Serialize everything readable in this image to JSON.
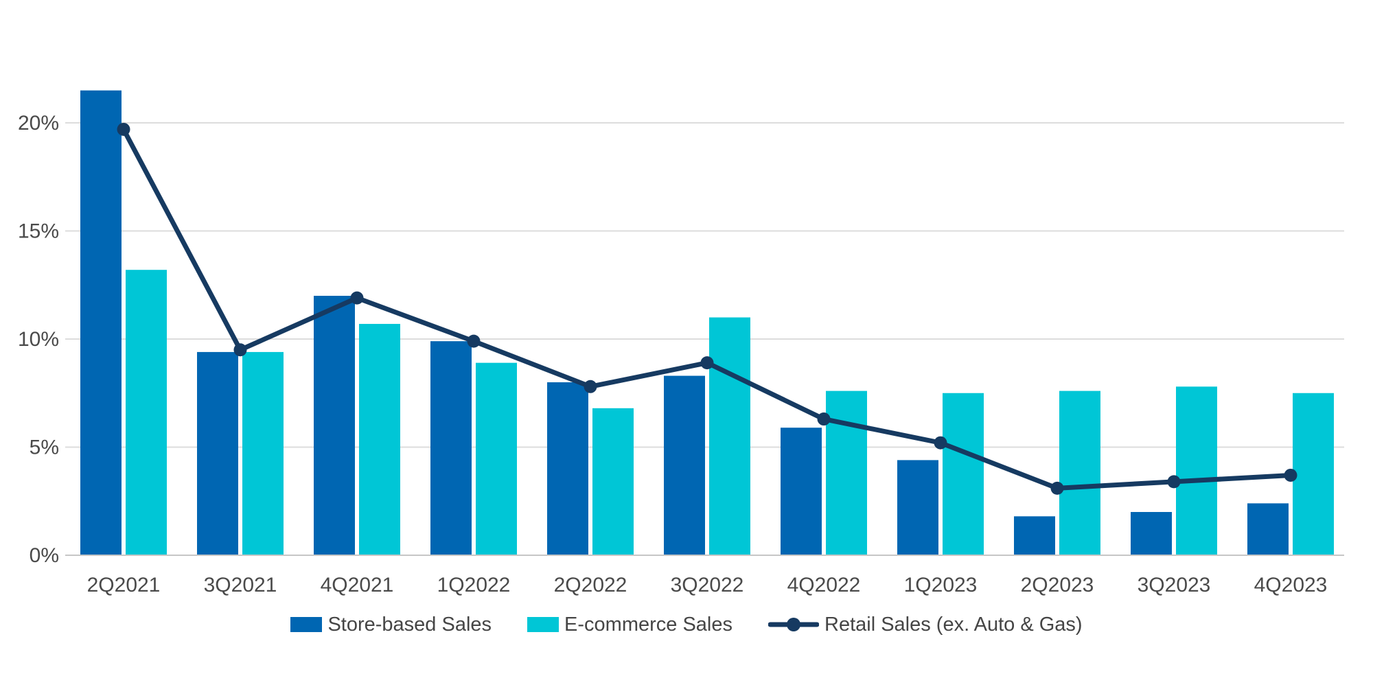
{
  "chart_data": {
    "type": "bar",
    "title": "",
    "categories": [
      "2Q2021",
      "3Q2021",
      "4Q2021",
      "1Q2022",
      "2Q2022",
      "3Q2022",
      "4Q2022",
      "1Q2023",
      "2Q2023",
      "3Q2023",
      "4Q2023"
    ],
    "series": [
      {
        "name": "Store-based Sales",
        "type": "bar",
        "color": "#0066b2",
        "values": [
          21.5,
          9.4,
          12.0,
          9.9,
          8.0,
          8.3,
          5.9,
          4.4,
          1.8,
          2.0,
          2.4
        ]
      },
      {
        "name": "E-commerce Sales",
        "type": "bar",
        "color": "#00c6d6",
        "values": [
          13.2,
          9.4,
          10.7,
          8.9,
          6.8,
          11.0,
          7.6,
          7.5,
          7.6,
          7.8,
          7.5
        ]
      },
      {
        "name": "Retail Sales (ex. Auto & Gas)",
        "type": "line",
        "color": "#163a61",
        "values": [
          19.7,
          9.5,
          11.9,
          9.9,
          7.8,
          8.9,
          6.3,
          5.2,
          3.1,
          3.4,
          3.7
        ]
      }
    ],
    "xlabel": "",
    "ylabel": "",
    "ylim": [
      0,
      22
    ],
    "y_axis": {
      "ticks": [
        {
          "label": "0%",
          "value": 0
        },
        {
          "label": "5%",
          "value": 5
        },
        {
          "label": "10%",
          "value": 10
        },
        {
          "label": "15%",
          "value": 15
        },
        {
          "label": "20%",
          "value": 20
        }
      ]
    },
    "grid": "horizontal",
    "legend_position": "bottom",
    "colors": {
      "gridline": "#dcdcdc",
      "axis_line": "#c6c6c6",
      "tick_text": "#4a4a4a",
      "legend_text": "#454545"
    }
  }
}
